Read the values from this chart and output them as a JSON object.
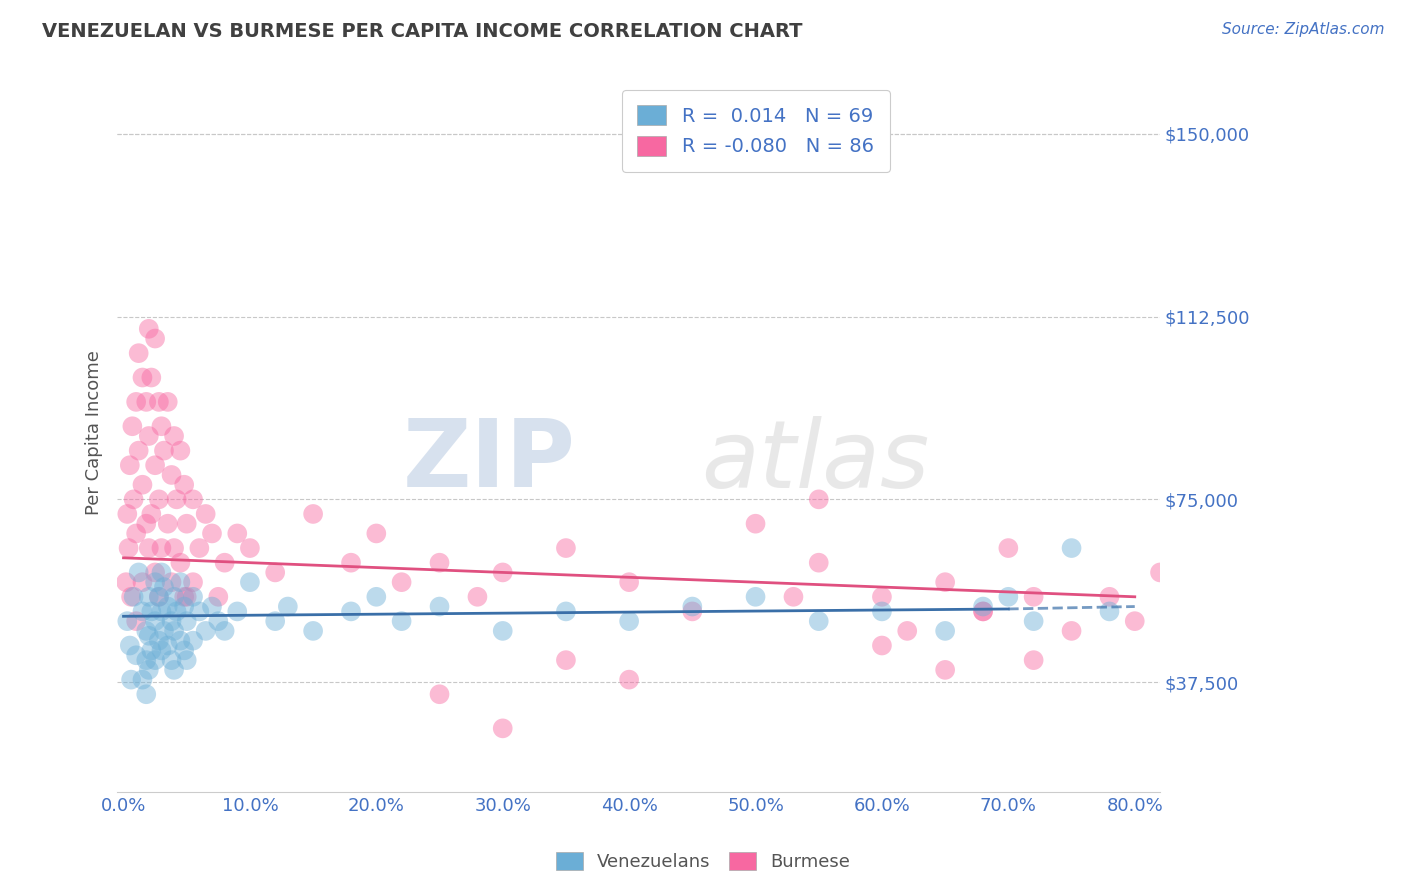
{
  "title": "VENEZUELAN VS BURMESE PER CAPITA INCOME CORRELATION CHART",
  "source": "Source: ZipAtlas.com",
  "ylabel": "Per Capita Income",
  "xlabel": "",
  "xlim": [
    -0.005,
    0.82
  ],
  "ylim": [
    15000,
    162500
  ],
  "yticks": [
    37500,
    75000,
    112500,
    150000
  ],
  "ytick_labels": [
    "$37,500",
    "$75,000",
    "$112,500",
    "$150,000"
  ],
  "xtick_labels": [
    "0.0%",
    "10.0%",
    "20.0%",
    "30.0%",
    "40.0%",
    "50.0%",
    "60.0%",
    "70.0%",
    "80.0%"
  ],
  "xticks": [
    0.0,
    0.1,
    0.2,
    0.3,
    0.4,
    0.5,
    0.6,
    0.7,
    0.8
  ],
  "venezuelan_color": "#6baed6",
  "burmese_color": "#f768a1",
  "venezuelan_R": 0.014,
  "venezuelan_N": 69,
  "burmese_R": -0.08,
  "burmese_N": 86,
  "watermark_zip": "ZIP",
  "watermark_atlas": "atlas",
  "background_color": "#ffffff",
  "grid_color": "#c8c8c8",
  "label_color": "#4472c4",
  "title_color": "#404040",
  "venezuelan_line_color": "#3a6fa8",
  "burmese_line_color": "#e05080",
  "venezuelan_scatter_x": [
    0.003,
    0.005,
    0.006,
    0.008,
    0.01,
    0.012,
    0.015,
    0.015,
    0.018,
    0.018,
    0.018,
    0.02,
    0.02,
    0.02,
    0.022,
    0.022,
    0.025,
    0.025,
    0.025,
    0.028,
    0.028,
    0.03,
    0.03,
    0.03,
    0.032,
    0.032,
    0.035,
    0.035,
    0.038,
    0.038,
    0.04,
    0.04,
    0.04,
    0.042,
    0.045,
    0.045,
    0.048,
    0.048,
    0.05,
    0.05,
    0.055,
    0.055,
    0.06,
    0.065,
    0.07,
    0.075,
    0.08,
    0.09,
    0.1,
    0.12,
    0.13,
    0.15,
    0.18,
    0.2,
    0.22,
    0.25,
    0.3,
    0.35,
    0.4,
    0.45,
    0.5,
    0.55,
    0.6,
    0.65,
    0.68,
    0.7,
    0.72,
    0.75,
    0.78
  ],
  "venezuelan_scatter_y": [
    50000,
    45000,
    38000,
    55000,
    43000,
    60000,
    52000,
    38000,
    48000,
    42000,
    35000,
    55000,
    47000,
    40000,
    52000,
    44000,
    58000,
    50000,
    42000,
    55000,
    46000,
    60000,
    52000,
    44000,
    57000,
    48000,
    53000,
    45000,
    50000,
    42000,
    55000,
    48000,
    40000,
    52000,
    58000,
    46000,
    53000,
    44000,
    50000,
    42000,
    55000,
    46000,
    52000,
    48000,
    53000,
    50000,
    48000,
    52000,
    58000,
    50000,
    53000,
    48000,
    52000,
    55000,
    50000,
    53000,
    48000,
    52000,
    50000,
    53000,
    55000,
    50000,
    52000,
    48000,
    53000,
    55000,
    50000,
    65000,
    52000
  ],
  "burmese_scatter_x": [
    0.002,
    0.003,
    0.004,
    0.005,
    0.006,
    0.007,
    0.008,
    0.01,
    0.01,
    0.01,
    0.012,
    0.012,
    0.015,
    0.015,
    0.015,
    0.018,
    0.018,
    0.02,
    0.02,
    0.02,
    0.022,
    0.022,
    0.025,
    0.025,
    0.025,
    0.028,
    0.028,
    0.028,
    0.03,
    0.03,
    0.032,
    0.035,
    0.035,
    0.038,
    0.038,
    0.04,
    0.04,
    0.042,
    0.045,
    0.045,
    0.048,
    0.048,
    0.05,
    0.05,
    0.055,
    0.055,
    0.06,
    0.065,
    0.07,
    0.075,
    0.08,
    0.09,
    0.1,
    0.12,
    0.15,
    0.18,
    0.2,
    0.22,
    0.25,
    0.28,
    0.3,
    0.35,
    0.4,
    0.45,
    0.5,
    0.53,
    0.55,
    0.6,
    0.62,
    0.65,
    0.68,
    0.7,
    0.72,
    0.35,
    0.4,
    0.55,
    0.6,
    0.65,
    0.68,
    0.72,
    0.75,
    0.78,
    0.8,
    0.82,
    0.25,
    0.3
  ],
  "burmese_scatter_y": [
    58000,
    72000,
    65000,
    82000,
    55000,
    90000,
    75000,
    95000,
    68000,
    50000,
    105000,
    85000,
    100000,
    78000,
    58000,
    95000,
    70000,
    110000,
    88000,
    65000,
    100000,
    72000,
    108000,
    82000,
    60000,
    95000,
    75000,
    55000,
    90000,
    65000,
    85000,
    95000,
    70000,
    80000,
    58000,
    88000,
    65000,
    75000,
    85000,
    62000,
    78000,
    55000,
    70000,
    55000,
    75000,
    58000,
    65000,
    72000,
    68000,
    55000,
    62000,
    68000,
    65000,
    60000,
    72000,
    62000,
    68000,
    58000,
    62000,
    55000,
    60000,
    65000,
    58000,
    52000,
    70000,
    55000,
    62000,
    55000,
    48000,
    58000,
    52000,
    65000,
    55000,
    42000,
    38000,
    75000,
    45000,
    40000,
    52000,
    42000,
    48000,
    55000,
    50000,
    60000,
    35000,
    28000
  ]
}
